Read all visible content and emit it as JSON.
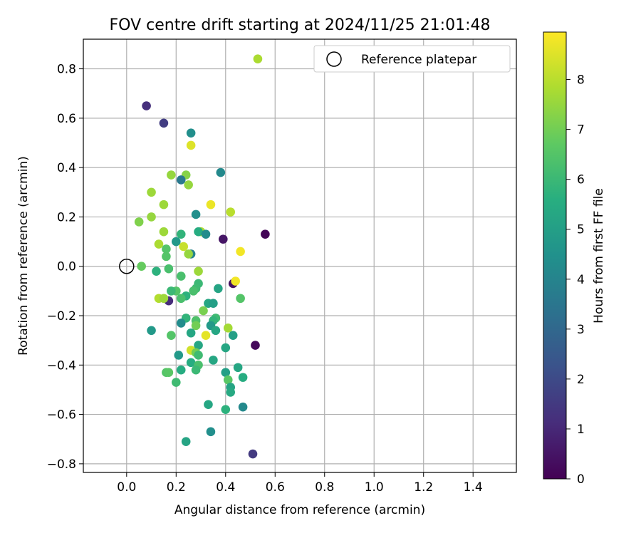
{
  "chart_data": {
    "type": "scatter",
    "title": "FOV centre drift starting at 2024/11/25 21:01:48",
    "xlabel": "Angular distance from reference (arcmin)",
    "ylabel": "Rotation from reference (arcmin)",
    "xlim": [
      -0.175,
      1.575
    ],
    "ylim": [
      -0.835,
      0.92
    ],
    "xticks": [
      "0.0",
      "0.2",
      "0.4",
      "0.6",
      "0.8",
      "1.0",
      "1.2",
      "1.4"
    ],
    "xtick_values": [
      0,
      0.2,
      0.4,
      0.6,
      0.8,
      1.0,
      1.2,
      1.4
    ],
    "yticks": [
      "−0.8",
      "−0.6",
      "−0.4",
      "−0.2",
      "0.0",
      "0.2",
      "0.4",
      "0.6",
      "0.8"
    ],
    "ytick_values": [
      -0.8,
      -0.6,
      -0.4,
      -0.2,
      0,
      0.2,
      0.4,
      0.6,
      0.8
    ],
    "grid": true,
    "legend": {
      "position": "top-right",
      "label": "Reference platepar"
    },
    "reference": {
      "x": 0.0,
      "y": 0.0
    },
    "colorbar": {
      "label": "Hours from first FF file",
      "min": 0,
      "max": 8.95,
      "ticks": [
        "0",
        "1",
        "2",
        "3",
        "4",
        "5",
        "6",
        "7",
        "8"
      ],
      "tick_values": [
        0,
        1,
        2,
        3,
        4,
        5,
        6,
        7,
        8
      ],
      "colormap": "viridis"
    },
    "points": [
      [
        0.53,
        0.84,
        7.8
      ],
      [
        0.08,
        0.65,
        1.2
      ],
      [
        0.15,
        0.58,
        1.6
      ],
      [
        0.26,
        0.54,
        4.4
      ],
      [
        0.26,
        0.49,
        8.5
      ],
      [
        0.38,
        0.38,
        4.2
      ],
      [
        0.18,
        0.37,
        7.5
      ],
      [
        0.24,
        0.37,
        7.3
      ],
      [
        0.22,
        0.35,
        3.6
      ],
      [
        0.25,
        0.33,
        7.5
      ],
      [
        0.1,
        0.3,
        7.6
      ],
      [
        0.34,
        0.25,
        8.7
      ],
      [
        0.15,
        0.25,
        7.6
      ],
      [
        0.42,
        0.22,
        8.0
      ],
      [
        0.28,
        0.21,
        4.4
      ],
      [
        0.1,
        0.2,
        7.5
      ],
      [
        0.05,
        0.18,
        7.2
      ],
      [
        0.56,
        0.13,
        0.1
      ],
      [
        0.15,
        0.14,
        7.6
      ],
      [
        0.3,
        0.14,
        7.8
      ],
      [
        0.29,
        0.14,
        5.5
      ],
      [
        0.32,
        0.13,
        4.3
      ],
      [
        0.22,
        0.13,
        5.8
      ],
      [
        0.39,
        0.11,
        0.5
      ],
      [
        0.2,
        0.1,
        4.8
      ],
      [
        0.13,
        0.09,
        7.8
      ],
      [
        0.16,
        0.07,
        6.5
      ],
      [
        0.23,
        0.08,
        8.2
      ],
      [
        0.26,
        0.05,
        4.0
      ],
      [
        0.25,
        0.05,
        7.5
      ],
      [
        0.46,
        0.06,
        8.8
      ],
      [
        0.16,
        0.04,
        6.5
      ],
      [
        0.06,
        0.0,
        6.8
      ],
      [
        0.12,
        -0.02,
        5.7
      ],
      [
        0.17,
        -0.01,
        6.3
      ],
      [
        0.29,
        -0.02,
        7.6
      ],
      [
        0.22,
        -0.04,
        6.3
      ],
      [
        0.43,
        -0.07,
        0.4
      ],
      [
        0.44,
        -0.06,
        8.8
      ],
      [
        0.29,
        -0.07,
        6.0
      ],
      [
        0.37,
        -0.09,
        5.2
      ],
      [
        0.28,
        -0.09,
        6.1
      ],
      [
        0.2,
        -0.1,
        6.5
      ],
      [
        0.18,
        -0.1,
        6.0
      ],
      [
        0.27,
        -0.1,
        6.3
      ],
      [
        0.17,
        -0.14,
        1.1
      ],
      [
        0.13,
        -0.13,
        7.9
      ],
      [
        0.15,
        -0.13,
        7.6
      ],
      [
        0.24,
        -0.12,
        5.7
      ],
      [
        0.22,
        -0.13,
        6.3
      ],
      [
        0.46,
        -0.13,
        6.5
      ],
      [
        0.33,
        -0.15,
        5.3
      ],
      [
        0.35,
        -0.15,
        5.0
      ],
      [
        0.31,
        -0.18,
        7.1
      ],
      [
        0.24,
        -0.21,
        5.8
      ],
      [
        0.36,
        -0.21,
        6.1
      ],
      [
        0.28,
        -0.22,
        6.4
      ],
      [
        0.35,
        -0.22,
        5.8
      ],
      [
        0.22,
        -0.23,
        4.3
      ],
      [
        0.34,
        -0.24,
        4.8
      ],
      [
        0.28,
        -0.24,
        7.0
      ],
      [
        0.41,
        -0.25,
        7.7
      ],
      [
        0.36,
        -0.26,
        5.3
      ],
      [
        0.1,
        -0.26,
        4.8
      ],
      [
        0.26,
        -0.27,
        5.3
      ],
      [
        0.18,
        -0.28,
        6.5
      ],
      [
        0.43,
        -0.28,
        5.0
      ],
      [
        0.32,
        -0.28,
        8.6
      ],
      [
        0.52,
        -0.32,
        0.2
      ],
      [
        0.29,
        -0.32,
        5.3
      ],
      [
        0.26,
        -0.34,
        8.3
      ],
      [
        0.28,
        -0.35,
        7.0
      ],
      [
        0.4,
        -0.33,
        5.3
      ],
      [
        0.21,
        -0.36,
        4.8
      ],
      [
        0.29,
        -0.36,
        6.1
      ],
      [
        0.26,
        -0.39,
        5.5
      ],
      [
        0.29,
        -0.4,
        6.3
      ],
      [
        0.35,
        -0.38,
        5.3
      ],
      [
        0.45,
        -0.41,
        5.3
      ],
      [
        0.28,
        -0.42,
        6.0
      ],
      [
        0.22,
        -0.42,
        5.5
      ],
      [
        0.16,
        -0.43,
        6.5
      ],
      [
        0.17,
        -0.43,
        6.6
      ],
      [
        0.4,
        -0.43,
        5.0
      ],
      [
        0.41,
        -0.46,
        6.6
      ],
      [
        0.47,
        -0.45,
        5.5
      ],
      [
        0.2,
        -0.47,
        6.1
      ],
      [
        0.42,
        -0.49,
        5.2
      ],
      [
        0.42,
        -0.51,
        5.4
      ],
      [
        0.33,
        -0.56,
        5.3
      ],
      [
        0.47,
        -0.57,
        4.2
      ],
      [
        0.4,
        -0.58,
        5.7
      ],
      [
        0.34,
        -0.67,
        4.4
      ],
      [
        0.24,
        -0.71,
        5.2
      ],
      [
        0.51,
        -0.76,
        1.5
      ]
    ]
  }
}
